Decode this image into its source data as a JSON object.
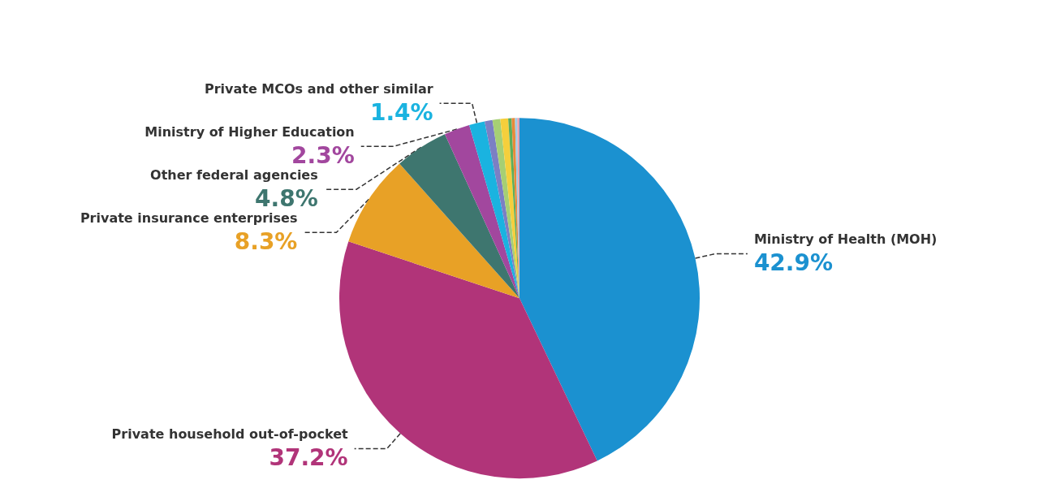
{
  "chart_data": {
    "type": "pie",
    "categories": [
      "Ministry of Health (MOH)",
      "Private household out-of-pocket",
      "Private insurance enterprises",
      "Other federal agencies",
      "Ministry of Higher Education",
      "Private MCOs and other similar",
      null,
      null,
      null,
      null,
      null,
      null,
      null
    ],
    "values": [
      42.9,
      37.2,
      8.3,
      4.8,
      2.3,
      1.4,
      0.7,
      0.7,
      0.7,
      0.3,
      0.3,
      0.2,
      0.2
    ],
    "colors": [
      "#1b91d0",
      "#b13479",
      "#e8a126",
      "#3e766f",
      "#a2479e",
      "#1ab3e0",
      "#7b7fc4",
      "#a6cf74",
      "#f5cf3c",
      "#5dae5a",
      "#e88a3a",
      "#9ecde6",
      "#e6a0b0"
    ],
    "value_labels": [
      "42.9%",
      "37.2%",
      "8.3%",
      "4.8%",
      "2.3%",
      "1.4%",
      null,
      null,
      null,
      null,
      null,
      null,
      null
    ],
    "legend": false
  }
}
